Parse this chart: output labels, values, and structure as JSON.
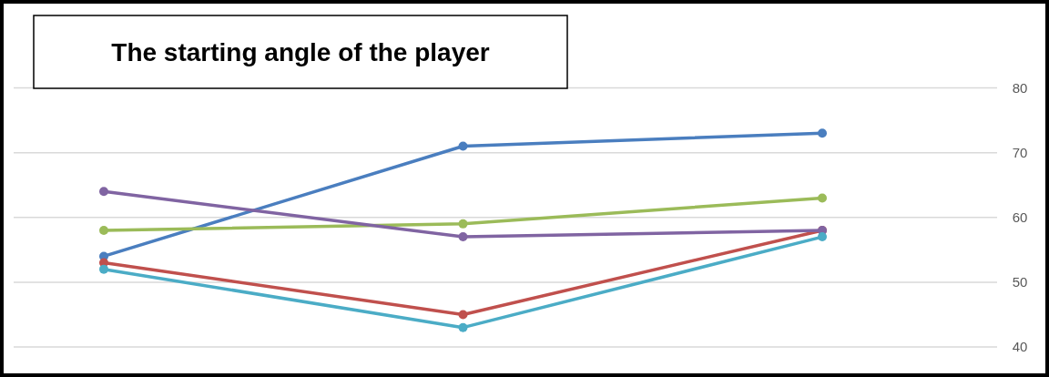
{
  "chart_data": {
    "type": "line",
    "title": "The starting angle of the player",
    "categories": [
      null,
      null,
      null
    ],
    "series": [
      {
        "color": "#4a7ebf",
        "values": [
          54,
          71,
          73
        ]
      },
      {
        "color": "#c0504d",
        "values": [
          53,
          45,
          58
        ]
      },
      {
        "color": "#9bbb59",
        "values": [
          58,
          59,
          63
        ]
      },
      {
        "color": "#8064a2",
        "values": [
          64,
          57,
          58
        ]
      },
      {
        "color": "#4bacc6",
        "values": [
          52,
          43,
          57
        ]
      }
    ],
    "ylim": [
      40,
      80
    ],
    "yticks": [
      40,
      50,
      60,
      70,
      80
    ],
    "grid": "y",
    "marker": "circle",
    "line_style": "solid"
  }
}
